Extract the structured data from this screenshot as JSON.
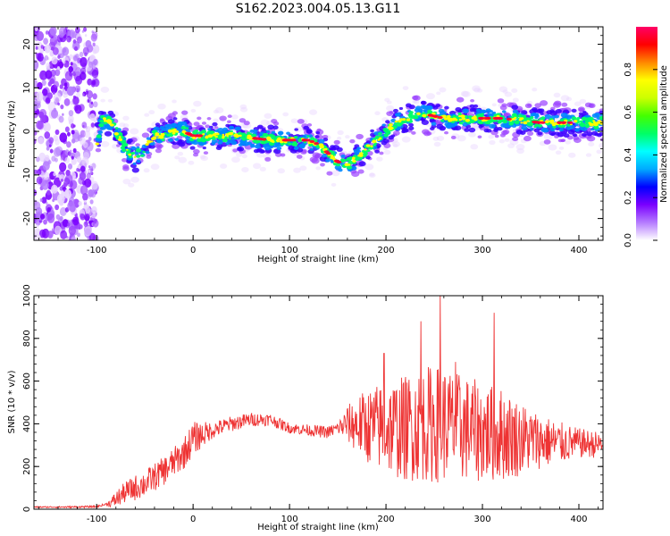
{
  "title": "S162.2023.004.05.13.G11",
  "chart_data": [
    {
      "type": "heatmap",
      "xlabel": "Height of straight line (km)",
      "ylabel": "Frequency (Hz)",
      "xlim": [
        -165,
        425
      ],
      "ylim": [
        -25,
        24
      ],
      "xticks": [
        -100,
        0,
        100,
        200,
        300,
        400
      ],
      "yticks": [
        -20,
        -10,
        0,
        10,
        20
      ],
      "colorbar": {
        "label": "Normalized spectral amplitude",
        "ticks": [
          0.0,
          0.2,
          0.4,
          0.6,
          0.8
        ],
        "range": [
          0,
          1
        ],
        "colors": [
          "#ffffff",
          "#b57cff",
          "#7a00ff",
          "#0000ff",
          "#00aaff",
          "#00ffff",
          "#00ff66",
          "#44ff00",
          "#ccff00",
          "#ffff00",
          "#ff8800",
          "#ff0000",
          "#ff0066"
        ]
      },
      "ridge": {
        "x": [
          -100,
          -95,
          -90,
          -80,
          -70,
          -60,
          -50,
          -40,
          -30,
          -20,
          -10,
          0,
          20,
          40,
          60,
          80,
          100,
          120,
          130,
          140,
          150,
          160,
          170,
          180,
          190,
          200,
          210,
          220,
          240,
          260,
          280,
          300,
          320,
          340,
          360,
          380,
          400,
          425
        ],
        "y": [
          -3,
          2,
          3,
          0,
          -4,
          -6,
          -4,
          -1,
          -1,
          0,
          0,
          -1,
          -1,
          -1,
          -1.5,
          -2,
          -2,
          -2,
          -3,
          -5,
          -7,
          -7.5,
          -6,
          -4,
          -2,
          0,
          2,
          3,
          4,
          3,
          3,
          3,
          3,
          2.5,
          2,
          2,
          2,
          2
        ]
      },
      "noise_region_x": [
        -165,
        -100
      ]
    },
    {
      "type": "line",
      "xlabel": "Height of straight line (km)",
      "ylabel": "SNR (10 * v/v)",
      "xlim": [
        -165,
        425
      ],
      "ylim": [
        0,
        1000
      ],
      "xticks": [
        -100,
        0,
        100,
        200,
        300,
        400
      ],
      "yticks": [
        0,
        200,
        400,
        600,
        800,
        1000
      ],
      "color": "#ee3333",
      "baseline": {
        "x": [
          -165,
          -130,
          -100,
          -85,
          -70,
          -50,
          -30,
          -10,
          0,
          20,
          40,
          60,
          80,
          100,
          120,
          140,
          150,
          160,
          180,
          200,
          220,
          240,
          260,
          280,
          300,
          320,
          340,
          360,
          380,
          400,
          425
        ],
        "y": [
          10,
          10,
          12,
          30,
          80,
          120,
          180,
          260,
          330,
          370,
          400,
          420,
          420,
          380,
          370,
          360,
          380,
          400,
          390,
          380,
          380,
          400,
          400,
          380,
          360,
          350,
          330,
          320,
          310,
          310,
          300
        ]
      },
      "amplitude": {
        "x": [
          -165,
          -90,
          -80,
          -60,
          -20,
          0,
          20,
          100,
          150,
          170,
          190,
          220,
          250,
          280,
          320,
          360,
          400,
          425
        ],
        "y": [
          3,
          5,
          40,
          60,
          70,
          80,
          40,
          25,
          30,
          140,
          200,
          250,
          280,
          250,
          220,
          130,
          70,
          60
        ]
      },
      "peaks": [
        {
          "x": 256,
          "y": 1000
        },
        {
          "x": 312,
          "y": 920
        },
        {
          "x": 236,
          "y": 880
        },
        {
          "x": 198,
          "y": 730
        },
        {
          "x": 272,
          "y": 690
        }
      ]
    }
  ]
}
